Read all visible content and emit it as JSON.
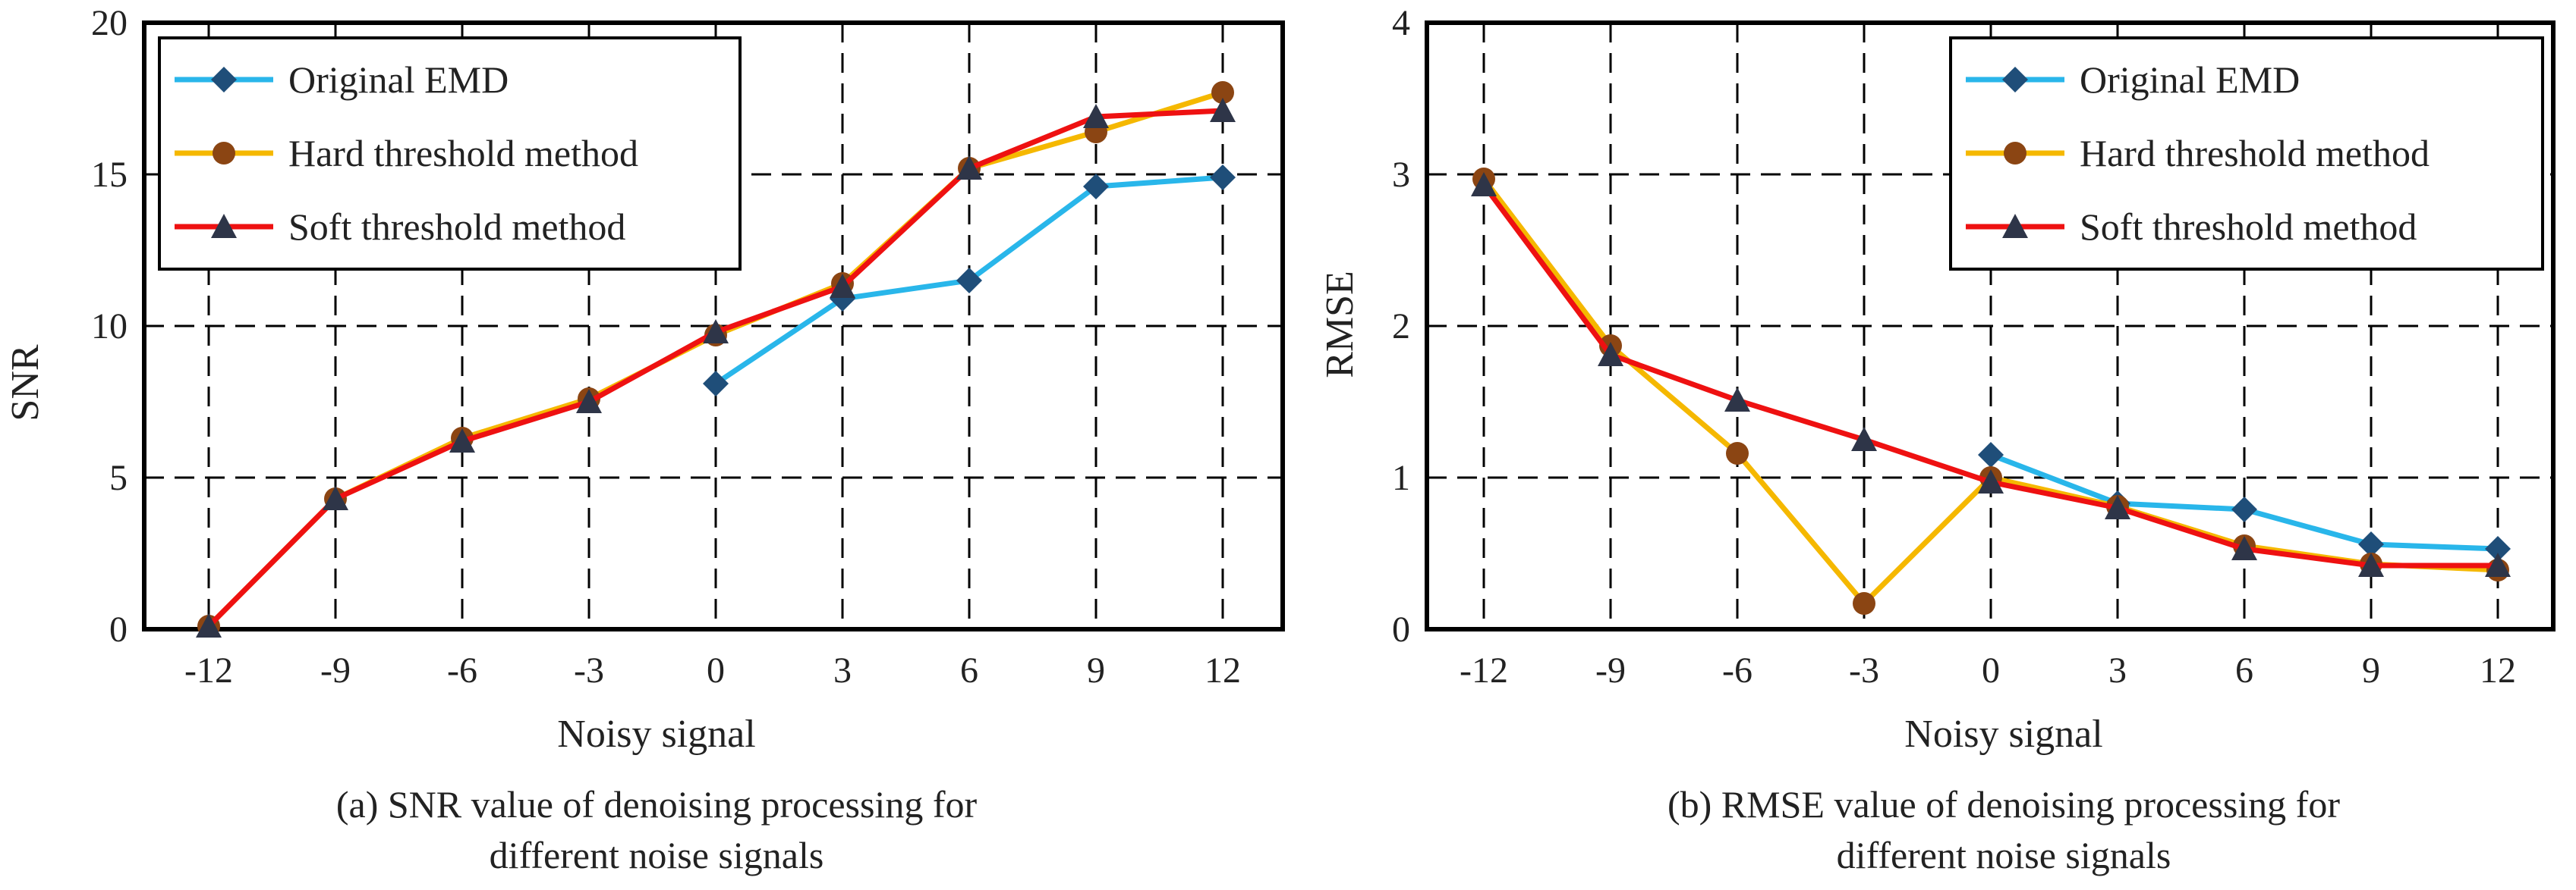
{
  "colors": {
    "original": "#29B6EA",
    "hard": "#F5B800",
    "soft": "#EE1111",
    "marker_original": "#1F4E79",
    "marker_hard": "#8B4513",
    "marker_soft": "#2E3548"
  },
  "chart_data": [
    {
      "type": "line",
      "xlabel": "Noisy signal",
      "ylabel": "SNR",
      "caption_line1": "(a) SNR value of denoising processing for",
      "caption_line2": "different noise signals",
      "categories": [
        "-12",
        "-9",
        "-6",
        "-3",
        "0",
        "3",
        "6",
        "9",
        "12"
      ],
      "ylim": [
        0,
        20
      ],
      "yticks": [
        0,
        5,
        10,
        15,
        20
      ],
      "grid": true,
      "legend_position": "top-left",
      "series": [
        {
          "name": "Original EMD",
          "key": "original",
          "marker": "diamond",
          "values": [
            null,
            null,
            null,
            null,
            8.1,
            10.9,
            11.5,
            14.6,
            14.9
          ]
        },
        {
          "name": "Hard threshold method",
          "key": "hard",
          "marker": "circle",
          "values": [
            0.1,
            4.3,
            6.3,
            7.6,
            9.7,
            11.4,
            15.2,
            16.4,
            17.7
          ]
        },
        {
          "name": "Soft threshold method",
          "key": "soft",
          "marker": "triangle",
          "values": [
            0.1,
            4.3,
            6.2,
            7.5,
            9.8,
            11.3,
            15.2,
            16.9,
            17.1
          ]
        }
      ]
    },
    {
      "type": "line",
      "xlabel": "Noisy signal",
      "ylabel": "RMSE",
      "caption_line1": "(b) RMSE value of denoising processing for",
      "caption_line2": "different noise signals",
      "categories": [
        "-12",
        "-9",
        "-6",
        "-3",
        "0",
        "3",
        "6",
        "9",
        "12"
      ],
      "ylim": [
        0,
        4
      ],
      "yticks": [
        0,
        1,
        2,
        3,
        4
      ],
      "grid": true,
      "legend_position": "top-right",
      "series": [
        {
          "name": "Original EMD",
          "key": "original",
          "marker": "diamond",
          "values": [
            null,
            null,
            null,
            null,
            1.15,
            0.83,
            0.79,
            0.56,
            0.53
          ]
        },
        {
          "name": "Hard threshold method",
          "key": "hard",
          "marker": "circle",
          "values": [
            2.97,
            1.87,
            1.16,
            0.17,
            1.0,
            0.81,
            0.55,
            0.43,
            0.39
          ]
        },
        {
          "name": "Soft threshold method",
          "key": "soft",
          "marker": "triangle",
          "values": [
            2.93,
            1.81,
            1.51,
            1.25,
            0.97,
            0.8,
            0.53,
            0.42,
            0.42
          ]
        }
      ]
    }
  ]
}
